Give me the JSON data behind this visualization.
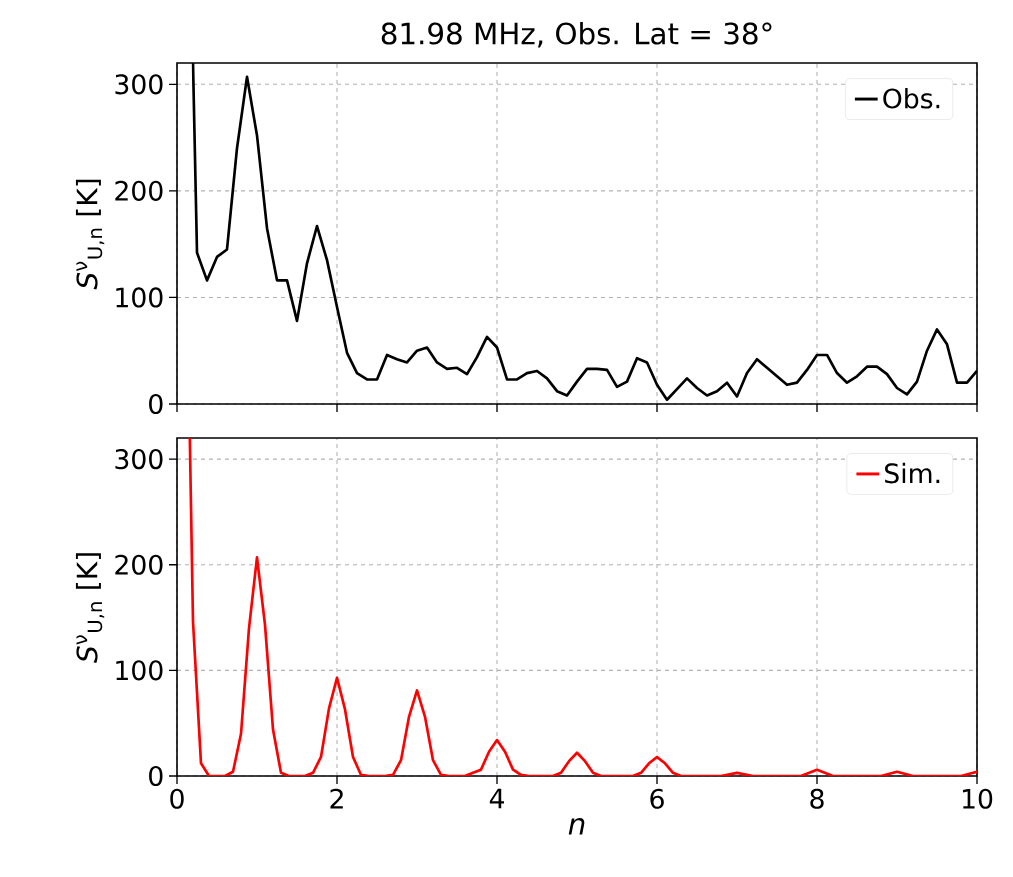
{
  "chart_data": [
    {
      "type": "line",
      "title": "81.98 MHz, Obs. Lat = 38°",
      "ylabel": "*S*$^{ν}$$_{U,n}$ [K]",
      "xlim": [
        0,
        10
      ],
      "ylim": [
        0,
        320
      ],
      "xticks": [
        0,
        2,
        4,
        6,
        8,
        10
      ],
      "yticks": [
        0,
        100,
        200,
        300
      ],
      "grid": true,
      "legend": "top right",
      "tick_labels": "y",
      "line_style": "solid",
      "series": [
        {
          "name": "Obs.",
          "color": "#000000",
          "x": [
            0.2,
            0.25,
            0.375,
            0.5,
            0.625,
            0.75,
            0.875,
            1.0,
            1.125,
            1.25,
            1.375,
            1.5,
            1.625,
            1.75,
            1.875,
            2.0,
            2.125,
            2.25,
            2.375,
            2.5,
            2.625,
            2.75,
            2.875,
            3.0,
            3.125,
            3.25,
            3.375,
            3.5,
            3.625,
            3.75,
            3.875,
            4.0,
            4.125,
            4.25,
            4.375,
            4.5,
            4.625,
            4.75,
            4.875,
            5.0,
            5.125,
            5.25,
            5.375,
            5.5,
            5.625,
            5.75,
            5.875,
            6.0,
            6.125,
            6.25,
            6.375,
            6.5,
            6.625,
            6.75,
            6.875,
            7.0,
            7.125,
            7.25,
            7.375,
            7.5,
            7.625,
            7.75,
            7.875,
            8.0,
            8.125,
            8.25,
            8.375,
            8.5,
            8.625,
            8.75,
            8.875,
            9.0,
            9.125,
            9.25,
            9.375,
            9.5,
            9.625,
            9.75,
            9.875,
            10.0
          ],
          "values": [
            320,
            142,
            116,
            138,
            145,
            240,
            307,
            252,
            165,
            116,
            116,
            78,
            132,
            167,
            135,
            91,
            48,
            29,
            23,
            23,
            46,
            42,
            39,
            50,
            53,
            39,
            33,
            34,
            28,
            44,
            63,
            53,
            23,
            23,
            29,
            31,
            24,
            12,
            8,
            21,
            33,
            33,
            32,
            16,
            21,
            43,
            39,
            18,
            4,
            14,
            24,
            15,
            8,
            12,
            20,
            7,
            29,
            42,
            34,
            26,
            18,
            20,
            32,
            46,
            46,
            29,
            20,
            26,
            35,
            35,
            28,
            15,
            9,
            21,
            50,
            70,
            56,
            20,
            20,
            31
          ]
        }
      ]
    },
    {
      "type": "line",
      "xlabel": "n",
      "ylabel": "*S*$^{ν}$$_{U,n}$ [K]",
      "xlim": [
        0,
        10
      ],
      "ylim": [
        0,
        320
      ],
      "xticks": [
        0,
        2,
        4,
        6,
        8,
        10
      ],
      "yticks": [
        0,
        100,
        200,
        300
      ],
      "grid": true,
      "legend": "top right",
      "line_style": "solid",
      "series": [
        {
          "name": "Sim.",
          "color": "#ff0000",
          "x": [
            0.16,
            0.2,
            0.3,
            0.4,
            0.6,
            0.7,
            0.8,
            0.9,
            1.0,
            1.1,
            1.2,
            1.3,
            1.4,
            1.6,
            1.7,
            1.8,
            1.9,
            2.0,
            2.1,
            2.2,
            2.3,
            2.4,
            2.6,
            2.7,
            2.8,
            2.9,
            3.0,
            3.1,
            3.2,
            3.3,
            3.4,
            3.6,
            3.7,
            3.8,
            3.9,
            4.0,
            4.1,
            4.2,
            4.3,
            4.4,
            4.7,
            4.8,
            4.9,
            5.0,
            5.1,
            5.2,
            5.3,
            5.7,
            5.8,
            5.9,
            6.0,
            6.1,
            6.2,
            6.3,
            6.8,
            7.0,
            7.2,
            7.8,
            8.0,
            8.2,
            8.8,
            9.0,
            9.2,
            9.8,
            10.0
          ],
          "values": [
            320,
            146,
            12,
            0,
            0,
            4,
            40,
            140,
            207,
            143,
            44,
            3,
            0,
            0,
            3,
            18,
            64,
            93,
            63,
            18,
            1,
            0,
            0,
            1,
            15,
            56,
            81,
            56,
            15,
            1,
            0,
            0,
            3,
            6,
            23,
            34,
            23,
            6,
            1,
            0,
            0,
            3,
            14,
            22,
            14,
            3,
            0,
            0,
            3,
            12,
            18,
            12,
            3,
            0,
            0,
            3,
            0,
            0,
            6,
            0,
            0,
            4,
            0,
            0,
            4
          ]
        }
      ]
    }
  ]
}
